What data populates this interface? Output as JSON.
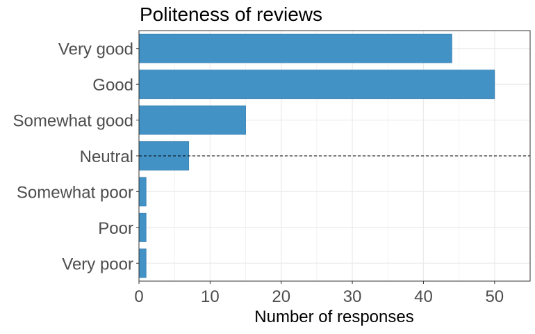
{
  "chart_data": {
    "type": "bar",
    "orientation": "horizontal",
    "title": "Politeness of reviews",
    "xlabel": "Number of responses",
    "ylabel": "",
    "categories": [
      "Very good",
      "Good",
      "Somewhat good",
      "Neutral",
      "Somewhat poor",
      "Poor",
      "Very poor"
    ],
    "values": [
      44,
      50,
      15,
      7,
      1,
      1,
      1
    ],
    "xlim": [
      0,
      55
    ],
    "x_ticks": [
      0,
      10,
      20,
      30,
      40,
      50
    ],
    "x_tick_labels": [
      "0",
      "10",
      "20",
      "30",
      "40",
      "50"
    ],
    "grid": true,
    "legend": "none",
    "reference_line": {
      "category": "Neutral",
      "style": "dashed"
    },
    "colors": {
      "bar_fill": "#4292c6",
      "bar_stroke": "#3b82b3",
      "grid": "#ebebeb",
      "axis_text": "#4d4d4d",
      "title_text": "#000000",
      "panel_border": "#333333"
    }
  }
}
